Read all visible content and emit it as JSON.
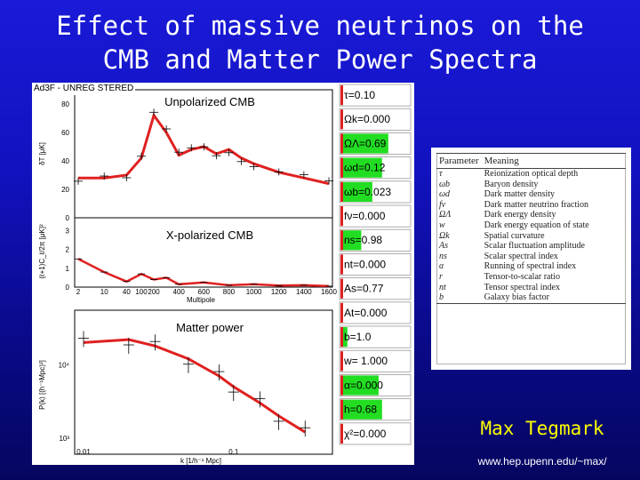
{
  "slide": {
    "title_line1": "Effect of massive  neutrinos on the",
    "title_line2": "CMB and Matter Power Spectra",
    "author": "Max Tegmark",
    "url": "www.hep.upenn.edu/~max/",
    "watermark": "Ad3F - UNREG STERED",
    "background_color": "#1212c0",
    "title_color": "#ffffff",
    "author_color": "#ffff00"
  },
  "figure": {
    "panel_titles": [
      "Unpolarized CMB",
      "X-polarized CMB",
      "Matter power"
    ],
    "y_labels": [
      "δT [μK]",
      "(ℓ+1)C_ℓ/2π [μK]²",
      "P(k) [(h⁻¹Mpc)³]"
    ],
    "x_label_top": "Multipole",
    "x_label_bottom": "k [1/h⁻¹ Mpc]",
    "accent_color": "#e02020",
    "parameters": [
      {
        "label": "τ=0.10",
        "fill": 0.03
      },
      {
        "label": "Ωk=0.000",
        "fill": 0.0
      },
      {
        "label": "ΩΛ=0.69",
        "fill": 0.69
      },
      {
        "label": "ωd=0.12",
        "fill": 0.6
      },
      {
        "label": "ωb=0.023",
        "fill": 0.46
      },
      {
        "label": "fν=0.000",
        "fill": 0.0
      },
      {
        "label": "ns=0.98",
        "fill": 0.3
      },
      {
        "label": "nt=0.000",
        "fill": 0.0
      },
      {
        "label": "As=0.77",
        "fill": 0.0
      },
      {
        "label": "At=0.000",
        "fill": 0.0
      },
      {
        "label": "b=1.0",
        "fill": 0.1
      },
      {
        "label": "w=     1.000",
        "fill": 0.0
      },
      {
        "label": "α=0.000",
        "fill": 0.55
      },
      {
        "label": "h=0.68",
        "fill": 0.6
      },
      {
        "label": "χ²=0.000",
        "fill": 0.0
      }
    ]
  },
  "chart_data": [
    {
      "type": "line",
      "title": "Unpolarized CMB",
      "ylabel": "δT [μK]",
      "xlabel": "Multipole",
      "x_ticks": [
        "2",
        "10",
        "40",
        "100",
        "200",
        "400",
        "600",
        "800",
        "1000",
        "1200",
        "1400",
        "1600"
      ],
      "y_ticks": [
        "0",
        "20",
        "40",
        "60",
        "80"
      ],
      "x_scale": "mixed log/linear",
      "ylim": [
        0,
        90
      ],
      "series": [
        {
          "values": [
            [
              2,
              28
            ],
            [
              10,
              28
            ],
            [
              40,
              30
            ],
            [
              100,
              42
            ],
            [
              200,
              72
            ],
            [
              300,
              60
            ],
            [
              400,
              44
            ],
            [
              500,
              48
            ],
            [
              600,
              50
            ],
            [
              700,
              45
            ],
            [
              800,
              48
            ],
            [
              900,
              42
            ],
            [
              1000,
              38
            ],
            [
              1200,
              32
            ],
            [
              1400,
              28
            ],
            [
              1600,
              24
            ]
          ]
        }
      ]
    },
    {
      "type": "line",
      "title": "X-polarized CMB",
      "xlabel": "Multipole",
      "y_ticks": [
        "0",
        "1",
        "2",
        "3"
      ],
      "ylim": [
        0,
        3.5
      ],
      "series": [
        {
          "values": [
            [
              2,
              1.5
            ],
            [
              10,
              0.8
            ],
            [
              40,
              0.3
            ],
            [
              100,
              0.7
            ],
            [
              200,
              0.4
            ],
            [
              300,
              0.5
            ],
            [
              400,
              0.15
            ],
            [
              600,
              0.25
            ],
            [
              800,
              0.1
            ],
            [
              1000,
              0.15
            ],
            [
              1200,
              0.08
            ],
            [
              1400,
              0.1
            ],
            [
              1600,
              0.05
            ]
          ]
        }
      ]
    },
    {
      "type": "line",
      "title": "Matter power",
      "ylabel": "P(k) [(h⁻¹Mpc)³]",
      "xlabel": "k [1/h⁻¹ Mpc]",
      "x_ticks": [
        "0.01",
        "0.1"
      ],
      "y_ticks": [
        "10⁴",
        "10³"
      ],
      "x_scale": "log",
      "y_scale": "log",
      "series": [
        {
          "values": [
            [
              0.01,
              20000
            ],
            [
              0.02,
              22000
            ],
            [
              0.03,
              18000
            ],
            [
              0.05,
              12000
            ],
            [
              0.08,
              7000
            ],
            [
              0.1,
              5000
            ],
            [
              0.15,
              3000
            ],
            [
              0.2,
              2000
            ],
            [
              0.3,
              1200
            ]
          ]
        }
      ]
    }
  ],
  "table": {
    "headers": [
      "Parameter",
      "Meaning"
    ],
    "rows": [
      {
        "symbol": "τ",
        "meaning": "Reionization optical depth"
      },
      {
        "symbol": "ωb",
        "meaning": "Baryon density"
      },
      {
        "symbol": "ωd",
        "meaning": "Dark matter density"
      },
      {
        "symbol": "fν",
        "meaning": "Dark matter neutrino fraction"
      },
      {
        "symbol": "ΩΛ",
        "meaning": "Dark energy density"
      },
      {
        "symbol": "w",
        "meaning": "Dark energy equation of state"
      },
      {
        "symbol": "Ωk",
        "meaning": "Spatial curvature"
      },
      {
        "symbol": "As",
        "meaning": "Scalar fluctuation amplitude"
      },
      {
        "symbol": "ns",
        "meaning": "Scalar spectral index"
      },
      {
        "symbol": "α",
        "meaning": "Running of spectral index"
      },
      {
        "symbol": "r",
        "meaning": "Tensor-to-scalar ratio"
      },
      {
        "symbol": "nt",
        "meaning": "Tensor spectral index"
      },
      {
        "symbol": "b",
        "meaning": "Galaxy bias factor"
      }
    ]
  }
}
